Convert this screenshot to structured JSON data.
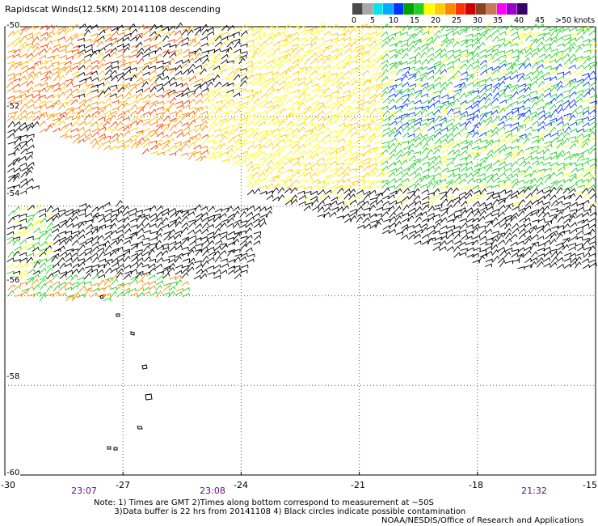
{
  "title": "Rapidscat Winds(12.5KM) 20141108 descending",
  "colorbar": {
    "colors": [
      "#4a4a4a",
      "#a8a8a8",
      "#00e5ee",
      "#00aaff",
      "#0033ff",
      "#00a000",
      "#22d022",
      "#ffff00",
      "#ffcc00",
      "#ff8800",
      "#ff3300",
      "#cc0000",
      "#884422",
      "#cc7755",
      "#ff00ff",
      "#9900cc",
      "#330066"
    ],
    "ticks": [
      "0",
      "5",
      "10",
      "15",
      "20",
      "25",
      "30",
      "35",
      "40",
      "45"
    ],
    "top_label": ">50",
    "unit": "knots"
  },
  "axes": {
    "lat_labels": [
      "-50",
      "-52",
      "-54",
      "-56",
      "-58",
      "-60"
    ],
    "lon_labels": [
      "-30",
      "-27",
      "-24",
      "-21",
      "-18",
      "-15"
    ],
    "times": [
      "23:07",
      "23:08",
      "21:32"
    ]
  },
  "notes": "Note: 1) Times are GMT 2)Times along bottom correspond to measurement at ~50S\n        3)Data buffer is 22 hrs from 20141108 4) Black circles indicate possible contamination",
  "credit": "NOAA/NESDIS/Office of Research and Applications",
  "chart_data": {
    "type": "wind-barb-map",
    "title": "Rapidscat Winds(12.5KM) 20141108 descending",
    "units": "knots",
    "lat_range": [
      -60,
      -50
    ],
    "lon_range": [
      -30,
      -15
    ],
    "lat_ticks": [
      -50,
      -52,
      -54,
      -56,
      -58,
      -60
    ],
    "lon_ticks": [
      -30,
      -27,
      -24,
      -21,
      -18,
      -15
    ],
    "time_labels": [
      {
        "lon": -27.5,
        "time": "23:07"
      },
      {
        "lon": -24.3,
        "time": "23:08"
      },
      {
        "lon": -15.6,
        "time": "21:32"
      }
    ],
    "speed_bins": [
      0,
      5,
      10,
      15,
      20,
      25,
      30,
      35,
      40,
      45,
      50
    ],
    "grid": true
  }
}
